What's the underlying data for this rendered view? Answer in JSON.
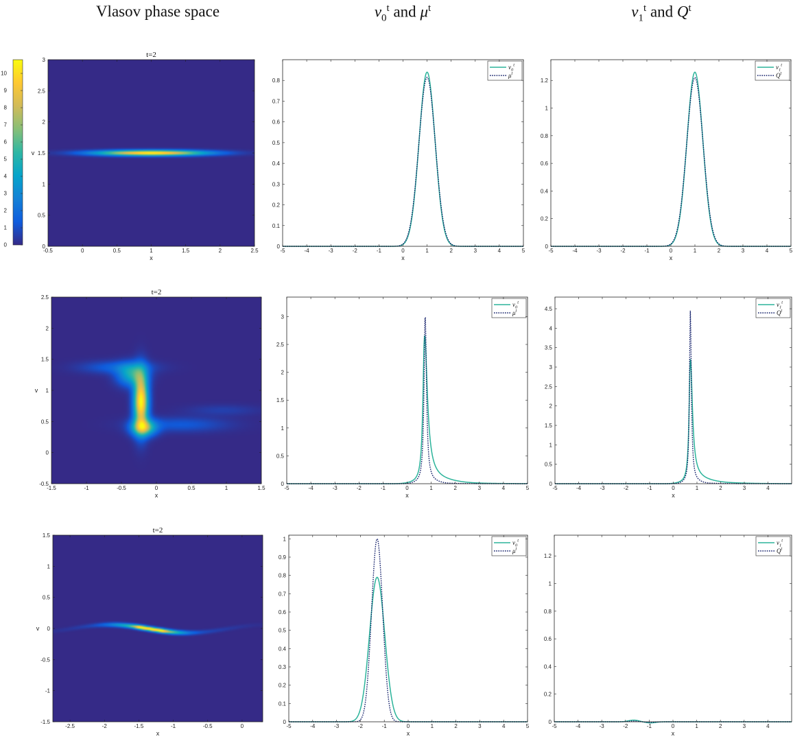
{
  "column_titles": [
    {
      "text": "Vlasov phase space"
    },
    {
      "base": "ν",
      "sub": "0",
      "sup": "t",
      "mid": " and ",
      "base2": "μ",
      "sup2": "t"
    },
    {
      "base": "ν",
      "sub": "1",
      "sup": "t",
      "mid": " and ",
      "base2": "Q",
      "sup2": "t"
    }
  ],
  "colors": {
    "nu": "#2bb39a",
    "mu": "#0d1a66",
    "background": "#3e2fa8",
    "viridis_stops": [
      "#352a87",
      "#0f5cdd",
      "#1481d6",
      "#06a4ca",
      "#2eb7a4",
      "#87bf77",
      "#d1bb59",
      "#fec832",
      "#f9fb0e"
    ]
  },
  "colorbar": {
    "ticks": [
      "0",
      "1",
      "2",
      "3",
      "4",
      "5",
      "6",
      "7",
      "8",
      "9",
      "10"
    ],
    "vmin": 0,
    "vmax": 10.8
  },
  "chart_data": [
    {
      "type": "heatmap",
      "title": "t=2",
      "xlabel": "x",
      "ylabel": "v",
      "xlim": [
        -0.5,
        2.5
      ],
      "ylim": [
        0,
        3
      ],
      "xticks": [
        "-0.5",
        "0",
        "0.5",
        "1",
        "1.5",
        "2",
        "2.5"
      ],
      "xtickvals": [
        -0.5,
        0,
        0.5,
        1,
        1.5,
        2,
        2.5
      ],
      "yticks": [
        "0",
        "0.5",
        "1",
        "1.5",
        "2",
        "2.5",
        "3"
      ],
      "ytickvals": [
        0,
        0.5,
        1,
        1.5,
        2,
        2.5,
        3
      ],
      "blobs": [
        {
          "x": 1.0,
          "v": 1.5,
          "sx": 0.55,
          "sv": 0.03,
          "peak": 10.8
        }
      ]
    },
    {
      "type": "line",
      "xlabel": "x",
      "xlim": [
        -5,
        5
      ],
      "ylim": [
        0,
        0.9
      ],
      "xticks": [
        "-5",
        "-4",
        "-3",
        "-2",
        "-1",
        "0",
        "1",
        "2",
        "3",
        "4",
        "5"
      ],
      "xtickvals": [
        -5,
        -4,
        -3,
        -2,
        -1,
        0,
        1,
        2,
        3,
        4,
        5
      ],
      "yticks": [
        "0",
        "0.1",
        "0.2",
        "0.3",
        "0.4",
        "0.5",
        "0.6",
        "0.7",
        "0.8"
      ],
      "ytickvals": [
        0,
        0.1,
        0.2,
        0.3,
        0.4,
        0.5,
        0.6,
        0.7,
        0.8
      ],
      "series": [
        {
          "name": "ν0t",
          "base": "ν",
          "sub": "0",
          "sup": "t",
          "style": "solid",
          "shape": "gauss",
          "center": 1.0,
          "width": 0.47,
          "peak": 0.84
        },
        {
          "name": "μt",
          "base": "μ",
          "sub": "",
          "sup": "t",
          "style": "dotted",
          "shape": "gauss",
          "center": 1.0,
          "width": 0.485,
          "peak": 0.815
        }
      ]
    },
    {
      "type": "line",
      "xlabel": "x",
      "xlim": [
        -5,
        5
      ],
      "ylim": [
        0,
        1.35
      ],
      "xticks": [
        "-5",
        "-4",
        "-3",
        "-2",
        "-1",
        "0",
        "1",
        "2",
        "3",
        "4",
        "5"
      ],
      "xtickvals": [
        -5,
        -4,
        -3,
        -2,
        -1,
        0,
        1,
        2,
        3,
        4,
        5
      ],
      "yticks": [
        "0",
        "0.2",
        "0.4",
        "0.6",
        "0.8",
        "1",
        "1.2"
      ],
      "ytickvals": [
        0,
        0.2,
        0.4,
        0.6,
        0.8,
        1,
        1.2
      ],
      "series": [
        {
          "name": "ν1t",
          "base": "ν",
          "sub": "1",
          "sup": "t",
          "style": "solid",
          "shape": "gauss",
          "center": 1.0,
          "width": 0.47,
          "peak": 1.26
        },
        {
          "name": "Qt",
          "base": "Q",
          "sub": "",
          "sup": "t",
          "style": "dotted",
          "shape": "gauss",
          "center": 1.0,
          "width": 0.485,
          "peak": 1.22
        }
      ]
    },
    {
      "type": "heatmap",
      "title": "t=2",
      "xlabel": "x",
      "ylabel": "v",
      "xlim": [
        -1.5,
        1.5
      ],
      "ylim": [
        -0.5,
        2.5
      ],
      "xticks": [
        "-1.5",
        "-1",
        "-0.5",
        "0",
        "0.5",
        "1",
        "1.5"
      ],
      "xtickvals": [
        -1.5,
        -1,
        -0.5,
        0,
        0.5,
        1,
        1.5
      ],
      "yticks": [
        "-0.5",
        "0",
        "0.5",
        "1",
        "1.5",
        "2",
        "2.5"
      ],
      "ytickvals": [
        -0.5,
        0,
        0.5,
        1,
        1.5,
        2,
        2.5
      ],
      "blobs": [
        {
          "x": -0.22,
          "v": 0.82,
          "sx": 0.07,
          "sv": 0.3,
          "peak": 10.8
        },
        {
          "x": -0.18,
          "v": 0.4,
          "sx": 0.12,
          "sv": 0.09,
          "peak": 6.5
        },
        {
          "x": -0.35,
          "v": 1.25,
          "sx": 0.14,
          "sv": 0.12,
          "peak": 4.5
        },
        {
          "x": -0.55,
          "v": 1.37,
          "sx": 0.35,
          "sv": 0.07,
          "peak": 1.6
        },
        {
          "x": 0.35,
          "v": 0.45,
          "sx": 0.45,
          "sv": 0.08,
          "peak": 1.3
        },
        {
          "x": 0.95,
          "v": 0.68,
          "sx": 0.35,
          "sv": 0.06,
          "peak": 0.6
        }
      ]
    },
    {
      "type": "line",
      "xlabel": "x",
      "xlim": [
        -5,
        5
      ],
      "ylim": [
        0,
        3.35
      ],
      "xticks": [
        "-5",
        "-4",
        "-3",
        "-2",
        "-1",
        "0",
        "1",
        "2",
        "3",
        "4",
        "5"
      ],
      "xtickvals": [
        -5,
        -4,
        -3,
        -2,
        -1,
        0,
        1,
        2,
        3,
        4,
        5
      ],
      "yticks": [
        "0",
        "0.5",
        "1",
        "1.5",
        "2",
        "2.5",
        "3"
      ],
      "ytickvals": [
        0,
        0.5,
        1,
        1.5,
        2,
        2.5,
        3
      ],
      "series": [
        {
          "name": "ν0t",
          "base": "ν",
          "sub": "0",
          "sup": "t",
          "style": "solid",
          "shape": "peak",
          "center": 0.72,
          "wl": 0.12,
          "wr": 0.22,
          "peak": 2.65,
          "tail": 0.15,
          "taillen": 0.9
        },
        {
          "name": "μt",
          "base": "μ",
          "sub": "",
          "sup": "t",
          "style": "dotted",
          "shape": "peak",
          "center": 0.75,
          "wl": 0.09,
          "wr": 0.1,
          "peak": 3.05,
          "tail": 0.05,
          "taillen": 0.6
        }
      ]
    },
    {
      "type": "line",
      "xlabel": "x",
      "xlim": [
        -5,
        5
      ],
      "ylim": [
        0,
        4.8
      ],
      "xticks": [
        "-5",
        "-4",
        "-3",
        "-2",
        "-1",
        "0",
        "1",
        "2",
        "3",
        "4"
      ],
      "xtickvals": [
        -5,
        -4,
        -3,
        -2,
        -1,
        0,
        1,
        2,
        3,
        4
      ],
      "yticks": [
        "0",
        "0.5",
        "1",
        "1.5",
        "2",
        "2.5",
        "3",
        "3.5",
        "4",
        "4.5"
      ],
      "ytickvals": [
        0,
        0.5,
        1,
        1.5,
        2,
        2.5,
        3,
        3.5,
        4,
        4.5
      ],
      "series": [
        {
          "name": "ν1t",
          "base": "ν",
          "sub": "1",
          "sup": "t",
          "style": "solid",
          "shape": "peak",
          "center": 0.72,
          "wl": 0.1,
          "wr": 0.16,
          "peak": 3.2,
          "tail": 0.2,
          "taillen": 0.9
        },
        {
          "name": "Qt",
          "base": "Q",
          "sub": "",
          "sup": "t",
          "style": "dotted",
          "shape": "peak",
          "center": 0.72,
          "wl": 0.07,
          "wr": 0.08,
          "peak": 4.45,
          "tail": 0.06,
          "taillen": 0.6
        }
      ]
    },
    {
      "type": "heatmap",
      "title": "t=2",
      "xlabel": "x",
      "ylabel": "v",
      "xlim": [
        -2.75,
        0.3
      ],
      "ylim": [
        -1.5,
        1.5
      ],
      "xticks": [
        "-2.5",
        "-2",
        "-1.5",
        "-1",
        "-0.5",
        "0"
      ],
      "xtickvals": [
        -2.5,
        -2,
        -1.5,
        -1,
        -0.5,
        0
      ],
      "yticks": [
        "-1.5",
        "-1",
        "-0.5",
        "0",
        "0.5",
        "1",
        "1.5"
      ],
      "ytickvals": [
        -1.5,
        -1,
        -0.5,
        0,
        0.5,
        1,
        1.5
      ],
      "curve": {
        "x0": -1.35,
        "amp": 0.065,
        "period": 1.6,
        "width": 0.012
      },
      "blobs": [
        {
          "x": -1.35,
          "peak": 10.8,
          "sx": 0.12
        },
        {
          "x": -1.15,
          "peak": 6.0,
          "sx": 0.22
        },
        {
          "x": -1.6,
          "peak": 3.5,
          "sx": 0.25
        },
        {
          "x": -1.3,
          "peak": 1.3,
          "sx": 0.75
        }
      ]
    },
    {
      "type": "line",
      "xlabel": "x",
      "xlim": [
        -5,
        5
      ],
      "ylim": [
        0,
        1.02
      ],
      "xticks": [
        "-5",
        "-4",
        "-3",
        "-2",
        "-1",
        "0",
        "1",
        "2",
        "3",
        "4",
        "5"
      ],
      "xtickvals": [
        -5,
        -4,
        -3,
        -2,
        -1,
        0,
        1,
        2,
        3,
        4,
        5
      ],
      "yticks": [
        "0",
        "0.1",
        "0.2",
        "0.3",
        "0.4",
        "0.5",
        "0.6",
        "0.7",
        "0.8",
        "0.9",
        "1"
      ],
      "ytickvals": [
        0,
        0.1,
        0.2,
        0.3,
        0.4,
        0.5,
        0.6,
        0.7,
        0.8,
        0.9,
        1
      ],
      "series": [
        {
          "name": "ν0t",
          "base": "ν",
          "sub": "0",
          "sup": "t",
          "style": "solid",
          "shape": "gauss",
          "center": -1.3,
          "width": 0.45,
          "peak": 0.79
        },
        {
          "name": "μt",
          "base": "μ",
          "sub": "",
          "sup": "t",
          "style": "dotted",
          "shape": "gauss",
          "center": -1.3,
          "width": 0.33,
          "peak": 1.0
        }
      ]
    },
    {
      "type": "line",
      "xlabel": "x",
      "xlim": [
        -5,
        5
      ],
      "ylim": [
        0,
        1.35
      ],
      "xticks": [
        "-5",
        "-4",
        "-3",
        "-2",
        "-1",
        "0",
        "1",
        "2",
        "3",
        "4"
      ],
      "xtickvals": [
        -5,
        -4,
        -3,
        -2,
        -1,
        0,
        1,
        2,
        3,
        4
      ],
      "yticks": [
        "0",
        "0.2",
        "0.4",
        "0.6",
        "0.8",
        "1",
        "1.2"
      ],
      "ytickvals": [
        0,
        0.2,
        0.4,
        0.6,
        0.8,
        1,
        1.2
      ],
      "series": [
        {
          "name": "ν1t",
          "base": "ν",
          "sub": "1",
          "sup": "t",
          "style": "solid",
          "shape": "bump",
          "center": -1.65,
          "width": 0.3,
          "peak": 0.012,
          "neg": -0.008
        },
        {
          "name": "Qt",
          "base": "Q",
          "sub": "",
          "sup": "t",
          "style": "dotted",
          "shape": "bump",
          "center": -1.65,
          "width": 0.3,
          "peak": 0.005,
          "neg": -0.004
        }
      ]
    }
  ]
}
